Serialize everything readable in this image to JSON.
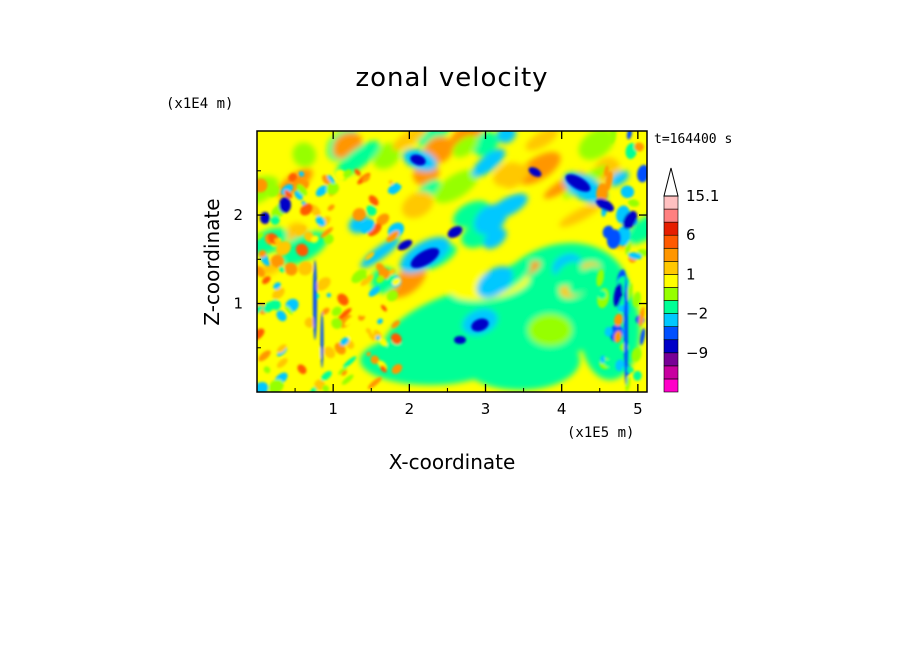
{
  "chart_data": {
    "type": "heatmap",
    "title": "zonal velocity",
    "xlabel": "X-coordinate",
    "ylabel": "Z-coordinate",
    "x_unit": "(x1E5 m)",
    "y_unit": "(x1E4 m)",
    "time_label": "t=164400 s",
    "xlim": [
      0,
      5.12
    ],
    "ylim": [
      0,
      2.95
    ],
    "x_ticks": [
      1,
      2,
      3,
      4,
      5
    ],
    "x_tick_labels": [
      "1",
      "2",
      "3",
      "4",
      "5"
    ],
    "y_ticks": [
      1,
      2
    ],
    "y_tick_labels": [
      "1",
      "2"
    ],
    "colorbar": {
      "levels": [
        -15,
        -12,
        -9,
        -6,
        -3,
        -2,
        -1,
        0,
        1,
        2,
        3,
        6,
        9,
        12,
        15.1
      ],
      "labeled_values": [
        15.1,
        6,
        1,
        -2,
        -9
      ],
      "labels": [
        "15.1",
        "6",
        "1",
        "−2",
        "−9"
      ],
      "colors": [
        "#ff00c8",
        "#c800a0",
        "#780096",
        "#0000c8",
        "#0050ff",
        "#00c8ff",
        "#00ff96",
        "#96ff00",
        "#ffff00",
        "#ffc800",
        "#ff9600",
        "#ff5a00",
        "#e61e00",
        "#ff8080",
        "#ffc0c0"
      ],
      "overflow_arrow": "max"
    }
  }
}
